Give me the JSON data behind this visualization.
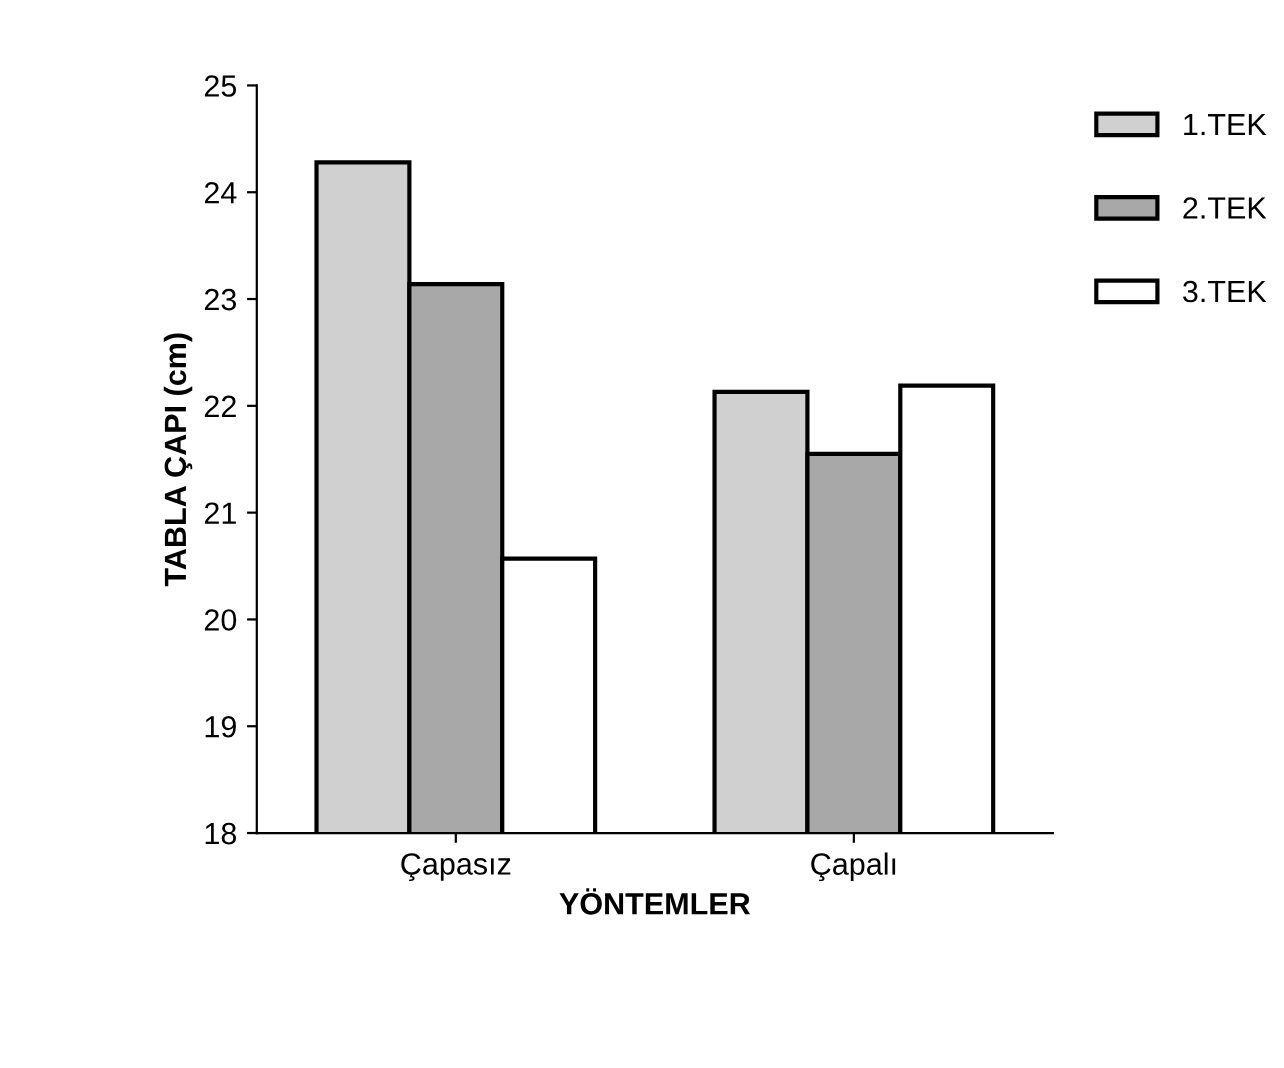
{
  "chart_data": {
    "type": "bar",
    "xlabel": "YÖNTEMLER",
    "ylabel": "TABLA ÇAPI (cm)",
    "categories": [
      "Çapasız",
      "Çapalı"
    ],
    "series": [
      {
        "name": "1.TEK",
        "color": "#d0d0d0",
        "values": [
          24.28,
          22.13
        ]
      },
      {
        "name": "2.TEK",
        "color": "#a8a8a8",
        "values": [
          23.14,
          21.55
        ]
      },
      {
        "name": "3.TEK",
        "color": "#ffffff",
        "values": [
          20.57,
          22.19
        ]
      }
    ],
    "ylim": [
      18,
      25
    ],
    "yticks": [
      18,
      19,
      20,
      21,
      22,
      23,
      24,
      25
    ],
    "grid": false,
    "legend": "right"
  }
}
